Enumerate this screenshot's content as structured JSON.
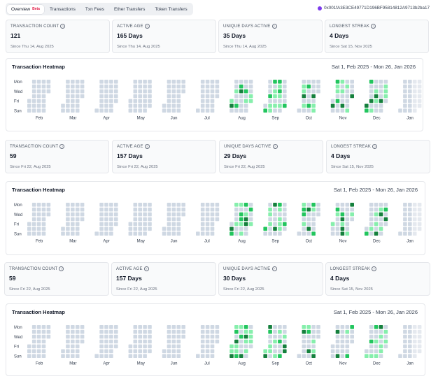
{
  "tabs": [
    {
      "label": "Overview",
      "badge": "Beta",
      "active": true
    },
    {
      "label": "Transactions"
    },
    {
      "label": "Txn Fees"
    },
    {
      "label": "Ether Transfers"
    },
    {
      "label": "Token Transfers"
    }
  ],
  "address": "0x001fA3E3CE49771D196BF95814812A9713b2ba17",
  "sections": [
    {
      "stats": [
        {
          "label": "TRANSACTION COUNT",
          "value": "121",
          "since": "Since Thu 14, Aug 2025"
        },
        {
          "label": "ACTIVE AGE",
          "value": "165 Days",
          "since": "Since Thu 14, Aug 2025"
        },
        {
          "label": "UNIQUE DAYS ACTIVE",
          "value": "35 Days",
          "since": "Since Thu 14, Aug 2025"
        },
        {
          "label": "LONGEST STREAK",
          "value": "4 Days",
          "since": "Since Sat 15, Nov 2025"
        }
      ],
      "heatmap": {
        "title": "Transaction Heatmap",
        "range": "Sat 1, Feb 2025 - Mon 26, Jan 2026",
        "day_labels": [
          "Mon",
          "Wed",
          "Fri",
          "Sun"
        ],
        "months": [
          "Feb",
          "Mar",
          "Apr",
          "May",
          "Jun",
          "Jul",
          "Aug",
          "Sep",
          "Oct",
          "Nov",
          "Dec",
          "Jan"
        ],
        "seed": 11
      }
    },
    {
      "stats": [
        {
          "label": "TRANSACTION COUNT",
          "value": "59",
          "since": "Since Fri 22, Aug 2025"
        },
        {
          "label": "ACTIVE AGE",
          "value": "157 Days",
          "since": "Since Fri 22, Aug 2025"
        },
        {
          "label": "UNIQUE DAYS ACTIVE",
          "value": "29 Days",
          "since": "Since Fri 22, Aug 2025"
        },
        {
          "label": "LONGEST STREAK",
          "value": "4 Days",
          "since": "Since Sat 15, Nov 2025"
        }
      ],
      "heatmap": {
        "title": "Transaction Heatmap",
        "range": "Sat 1, Feb 2025 - Mon 26, Jan 2026",
        "day_labels": [
          "Mon",
          "Wed",
          "Fri",
          "Sun"
        ],
        "months": [
          "Feb",
          "Mar",
          "Apr",
          "May",
          "Jun",
          "Jul",
          "Aug",
          "Sep",
          "Oct",
          "Nov",
          "Dec",
          "Jan"
        ],
        "seed": 23
      }
    },
    {
      "stats": [
        {
          "label": "TRANSACTION COUNT",
          "value": "59",
          "since": "Since Fri 22, Aug 2025"
        },
        {
          "label": "ACTIVE AGE",
          "value": "157 Days",
          "since": "Since Fri 22, Aug 2025"
        },
        {
          "label": "UNIQUE DAYS ACTIVE",
          "value": "30 Days",
          "since": "Since Fri 22, Aug 2025"
        },
        {
          "label": "LONGEST STREAK",
          "value": "4 Days",
          "since": "Since Sat 15, Nov 2025"
        }
      ],
      "heatmap": {
        "title": "Transaction Heatmap",
        "range": "Sat 1, Feb 2025 - Mon 26, Jan 2026",
        "day_labels": [
          "Mon",
          "Wed",
          "Fri",
          "Sun"
        ],
        "months": [
          "Feb",
          "Mar",
          "Apr",
          "May",
          "Jun",
          "Jul",
          "Aug",
          "Sep",
          "Oct",
          "Nov",
          "Dec",
          "Jan"
        ],
        "seed": 37
      }
    }
  ],
  "colors": {
    "empty": "#cfd8e3",
    "faded": "#e5e9ef",
    "level1": "#86efac",
    "level2": "#22c55e",
    "level3": "#15803d"
  }
}
